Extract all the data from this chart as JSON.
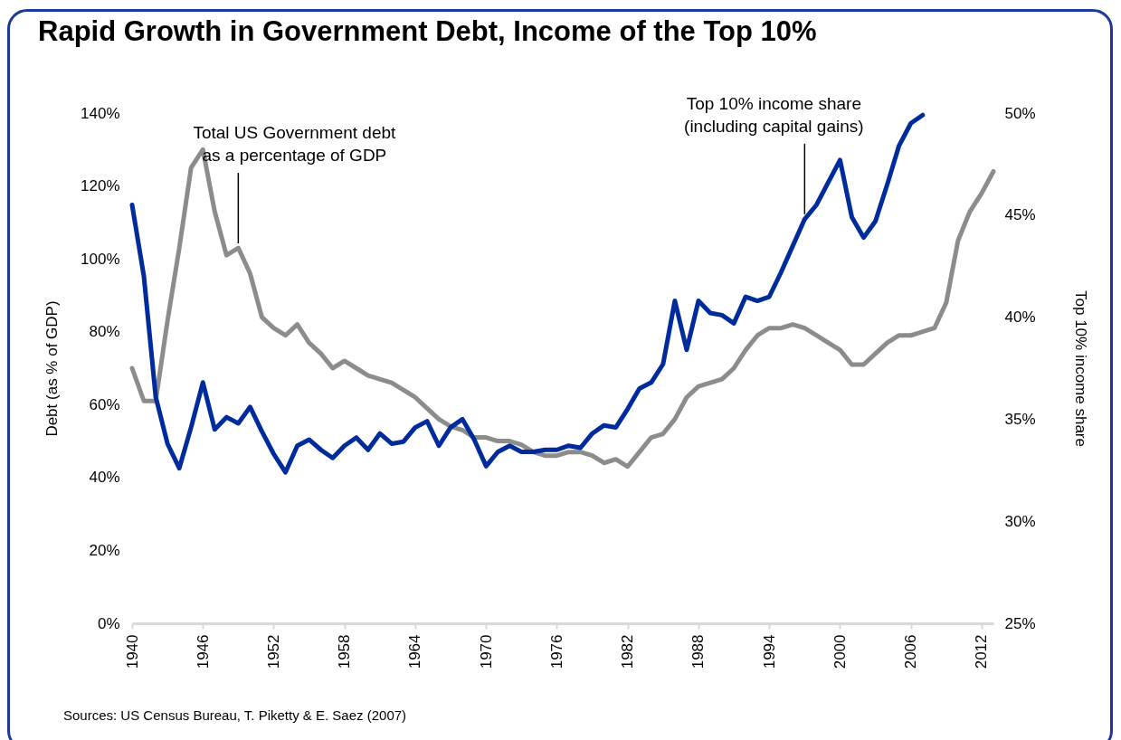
{
  "chart_data": {
    "type": "line",
    "title": "Rapid Growth in Government Debt, Income of the Top 10%",
    "ylabel": "Debt (as % of GDP)",
    "y2label": "Top 10% income share",
    "x": [
      1940,
      1941,
      1942,
      1943,
      1944,
      1945,
      1946,
      1947,
      1948,
      1949,
      1950,
      1951,
      1952,
      1953,
      1954,
      1955,
      1956,
      1957,
      1958,
      1959,
      1960,
      1961,
      1962,
      1963,
      1964,
      1965,
      1966,
      1967,
      1968,
      1969,
      1970,
      1971,
      1972,
      1973,
      1974,
      1975,
      1976,
      1977,
      1978,
      1979,
      1980,
      1981,
      1982,
      1983,
      1984,
      1985,
      1986,
      1987,
      1988,
      1989,
      1990,
      1991,
      1992,
      1993,
      1994,
      1995,
      1996,
      1997,
      1998,
      1999,
      2000,
      2001,
      2002,
      2003,
      2004,
      2005,
      2006,
      2007,
      2008,
      2009,
      2010,
      2011,
      2012,
      2013
    ],
    "series": [
      {
        "color": "#8c8c8c",
        "values": [
          70,
          61,
          61,
          83,
          103,
          125,
          130,
          113,
          101,
          103,
          96,
          84,
          81,
          79,
          82,
          77,
          74,
          70,
          72,
          70,
          68,
          67,
          66,
          64,
          62,
          59,
          56,
          54,
          53,
          51,
          51,
          50,
          50,
          49,
          47,
          46,
          46,
          47,
          47,
          46,
          44,
          45,
          43,
          47,
          51,
          52,
          56,
          62,
          65,
          66,
          67,
          70,
          75,
          79,
          81,
          81,
          82,
          81,
          79,
          77,
          75,
          71,
          71,
          74,
          77,
          79,
          79,
          80,
          81,
          88,
          105,
          113,
          118,
          124
        ]
      },
      {
        "color": "#002b9c",
        "axis": "y2",
        "values": [
          45.5,
          42.0,
          36.1,
          33.8,
          32.6,
          34.6,
          36.8,
          34.5,
          35.1,
          34.8,
          35.6,
          34.4,
          33.3,
          32.4,
          33.7,
          34.0,
          33.5,
          33.1,
          33.7,
          34.1,
          33.5,
          34.3,
          33.8,
          33.9,
          34.6,
          34.9,
          33.7,
          34.6,
          35.0,
          34.0,
          32.7,
          33.4,
          33.7,
          33.4,
          33.4,
          33.5,
          33.5,
          33.7,
          33.6,
          34.3,
          34.7,
          34.6,
          35.5,
          36.5,
          36.8,
          37.7,
          40.8,
          38.4,
          40.8,
          40.2,
          40.1,
          39.7,
          41.0,
          40.8,
          41.0,
          42.2,
          43.5,
          44.8,
          45.5,
          46.6,
          47.7,
          44.9,
          43.9,
          44.7,
          46.5,
          48.4,
          49.5,
          49.9,
          null,
          null,
          null,
          null,
          null,
          null
        ]
      }
    ],
    "xlim": [
      1940,
      2013
    ],
    "xticks": [
      1940,
      1946,
      1952,
      1958,
      1964,
      1970,
      1976,
      1982,
      1988,
      1994,
      2000,
      2006,
      2012
    ],
    "ylim": [
      0,
      140
    ],
    "yticks": [
      {
        "value": 0,
        "label": "0%"
      },
      {
        "value": 20,
        "label": "20%"
      },
      {
        "value": 40,
        "label": "40%"
      },
      {
        "value": 60,
        "label": "60%"
      },
      {
        "value": 80,
        "label": "80%"
      },
      {
        "value": 100,
        "label": "100%"
      },
      {
        "value": 120,
        "label": "120%"
      },
      {
        "value": 140,
        "label": "140%"
      }
    ],
    "y2lim": [
      25,
      50
    ],
    "y2ticks": [
      {
        "value": 25,
        "label": "25%"
      },
      {
        "value": 30,
        "label": "30%"
      },
      {
        "value": 35,
        "label": "35%"
      },
      {
        "value": 40,
        "label": "40%"
      },
      {
        "value": 45,
        "label": "45%"
      },
      {
        "value": 50,
        "label": "50%"
      }
    ],
    "grid": false,
    "line_style": "solid",
    "marker": "none",
    "annotations": [
      {
        "text": "Total US Government debt as a percentage of GDP",
        "x": 1949,
        "y": 103
      },
      {
        "text": "Top 10% income share (including capital gains)",
        "x": 1997,
        "y": 111
      },
      "Sources: US Census Bureau, T. Piketty & E. Saez (2007)"
    ]
  }
}
